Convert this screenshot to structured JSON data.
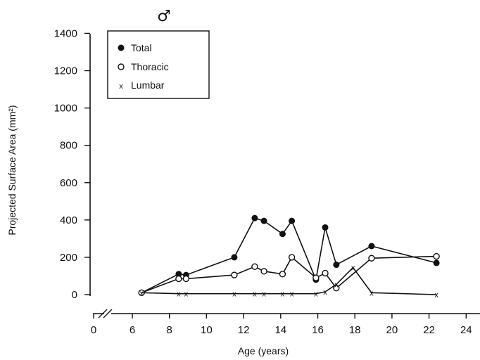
{
  "chart_data": {
    "type": "line",
    "symbol": "♂",
    "xlabel": "Age (years)",
    "ylabel": "Projected Surface Area (mm²)",
    "xlim": [
      0,
      24
    ],
    "ylim": [
      0,
      1400
    ],
    "xticks": [
      0,
      6,
      8,
      10,
      12,
      14,
      16,
      18,
      20,
      22,
      24
    ],
    "yticks": [
      0,
      200,
      400,
      600,
      800,
      1000,
      1200,
      1400
    ],
    "xtick_labels": [
      "0",
      "6",
      "8",
      "10",
      "12",
      "14",
      "16",
      "18",
      "20",
      "22",
      "24"
    ],
    "ytick_labels": [
      "0",
      "200",
      "400",
      "600",
      "800",
      "1000",
      "1200",
      "1400"
    ],
    "x_axis_break": true,
    "grid": false,
    "legend_position": "top-left",
    "series": [
      {
        "name": "Total",
        "marker": "filled-circle",
        "x": [
          6.5,
          8.5,
          8.9,
          11.5,
          12.6,
          13.1,
          14.1,
          14.6,
          15.9,
          16.4,
          17.0,
          18.9,
          22.4
        ],
        "values": [
          10,
          110,
          105,
          200,
          410,
          395,
          325,
          395,
          80,
          360,
          160,
          260,
          170
        ]
      },
      {
        "name": "Thoracic",
        "marker": "open-circle",
        "x": [
          6.5,
          8.5,
          8.9,
          11.5,
          12.6,
          13.1,
          14.1,
          14.6,
          15.9,
          16.4,
          17.0,
          18.9,
          22.4
        ],
        "values": [
          10,
          85,
          85,
          105,
          150,
          125,
          110,
          200,
          90,
          115,
          35,
          195,
          205
        ]
      },
      {
        "name": "Lumbar",
        "marker": "x",
        "x": [
          6.5,
          8.5,
          8.9,
          11.5,
          12.6,
          13.1,
          14.1,
          14.6,
          15.9,
          16.4,
          17.0,
          17.9,
          18.9,
          22.4
        ],
        "values": [
          10,
          5,
          5,
          5,
          5,
          5,
          5,
          5,
          5,
          15,
          55,
          145,
          10,
          0
        ]
      }
    ]
  }
}
